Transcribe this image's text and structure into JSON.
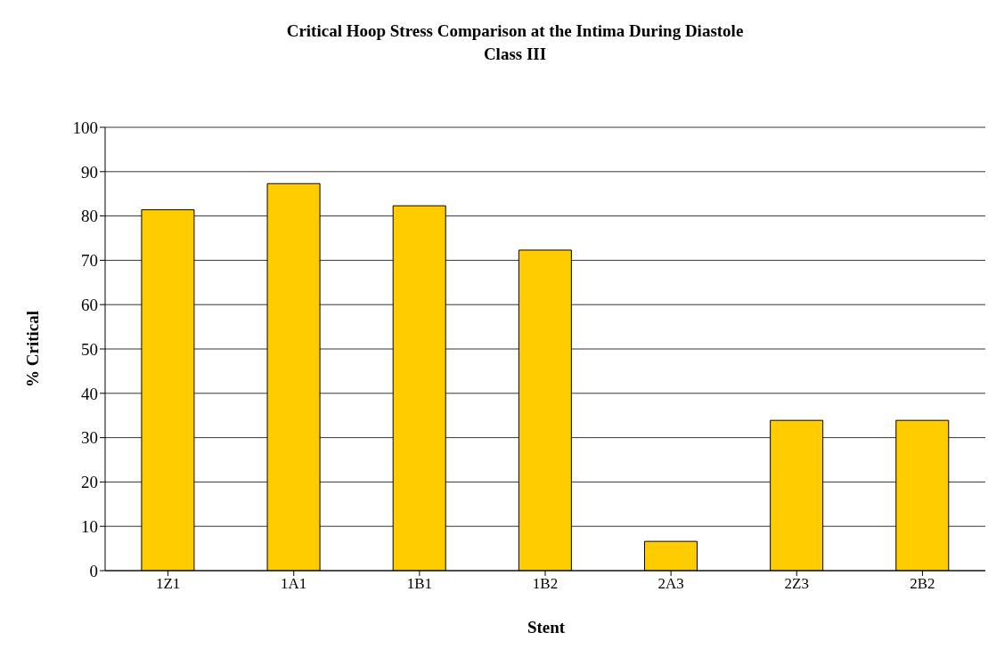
{
  "chart_data": {
    "type": "bar",
    "title": "Critical Hoop Stress Comparison at the Intima During Diastole",
    "subtitle": "Class III",
    "xlabel": "Stent",
    "ylabel": "% Critical",
    "categories": [
      "1Z1",
      "1A1",
      "1B1",
      "1B2",
      "2A3",
      "2Z3",
      "2B2"
    ],
    "values": [
      81.4,
      87.3,
      82.3,
      72.3,
      6.6,
      33.9,
      33.9
    ],
    "color": "#ffcc00",
    "ylim": [
      0,
      100
    ],
    "yticks": [
      0,
      10,
      20,
      30,
      40,
      50,
      60,
      70,
      80,
      90,
      100
    ],
    "grid": "y"
  }
}
